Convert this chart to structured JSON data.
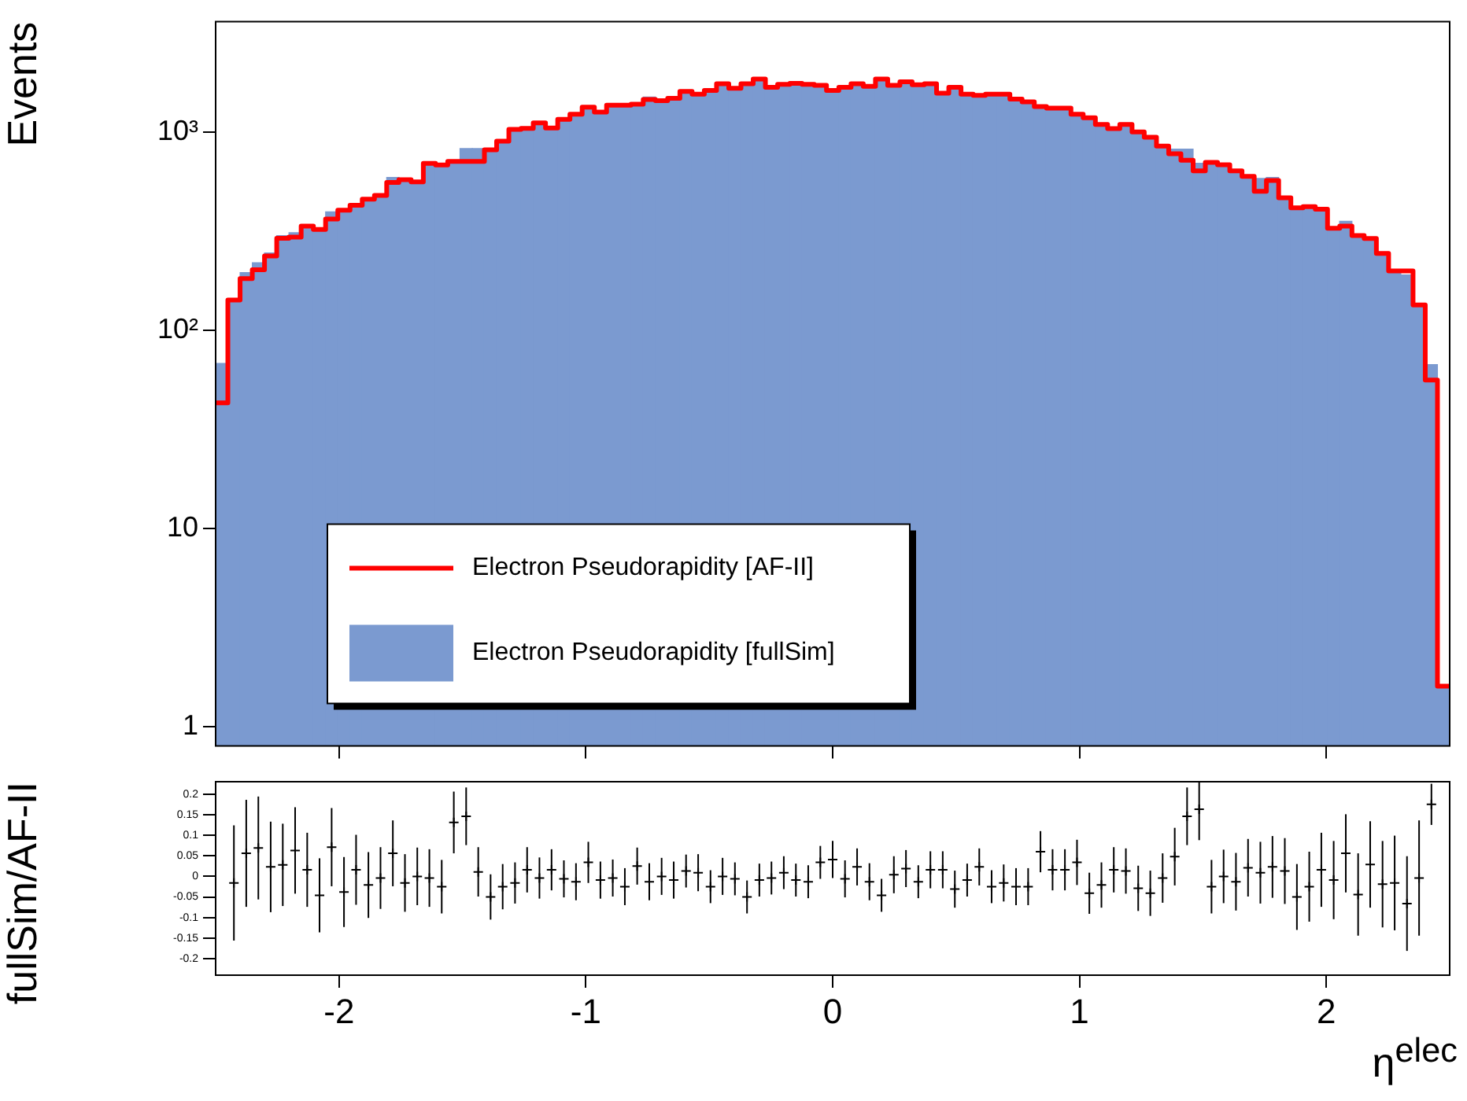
{
  "chart_data": [
    {
      "type": "histogram",
      "ylabel": "Events",
      "log": "y",
      "grid": false,
      "legend": "bottom left",
      "tick_labels": "y",
      "xlim": [
        -2.5,
        2.5
      ],
      "xticks": [
        -2,
        -1,
        0,
        1,
        2
      ],
      "ylim": [
        0.8,
        3600
      ],
      "yticks": [
        1,
        10,
        {
          "value": 100,
          "label": "10²"
        },
        {
          "value": 1000,
          "label": "10³"
        }
      ],
      "bins": [
        -2.5,
        -2.45,
        -2.401,
        -2.351,
        -2.302,
        -2.252,
        -2.203,
        -2.153,
        -2.104,
        -2.054,
        -2.005,
        -1.955,
        -1.906,
        -1.856,
        -1.807,
        -1.757,
        -1.708,
        -1.658,
        -1.609,
        -1.559,
        -1.51,
        -1.46,
        -1.411,
        -1.361,
        -1.312,
        -1.262,
        -1.213,
        -1.163,
        -1.114,
        -1.064,
        -1.015,
        -0.965,
        -0.916,
        -0.866,
        -0.817,
        -0.767,
        -0.718,
        -0.668,
        -0.619,
        -0.569,
        -0.52,
        -0.47,
        -0.421,
        -0.371,
        -0.322,
        -0.272,
        -0.223,
        -0.173,
        -0.124,
        -0.074,
        -0.025,
        0.025,
        0.074,
        0.124,
        0.173,
        0.223,
        0.272,
        0.322,
        0.371,
        0.421,
        0.47,
        0.52,
        0.569,
        0.619,
        0.668,
        0.718,
        0.767,
        0.817,
        0.866,
        0.916,
        0.965,
        1.015,
        1.064,
        1.114,
        1.163,
        1.213,
        1.262,
        1.312,
        1.361,
        1.411,
        1.46,
        1.51,
        1.559,
        1.609,
        1.658,
        1.708,
        1.757,
        1.807,
        1.856,
        1.906,
        1.955,
        2.005,
        2.054,
        2.104,
        2.153,
        2.203,
        2.252,
        2.302,
        2.351,
        2.401,
        2.45,
        2.5
      ],
      "series": [
        {
          "name": "Electron Pseudorapidity [AF-II]",
          "type": "step",
          "color": "#ff0000",
          "x": [
            -2.475,
            -2.426,
            -2.376,
            -2.327,
            -2.277,
            -2.228,
            -2.178,
            -2.129,
            -2.079,
            -2.03,
            -1.98,
            -1.931,
            -1.881,
            -1.832,
            -1.782,
            -1.733,
            -1.683,
            -1.634,
            -1.584,
            -1.535,
            -1.485,
            -1.436,
            -1.386,
            -1.337,
            -1.287,
            -1.238,
            -1.188,
            -1.139,
            -1.089,
            -1.04,
            -0.99,
            -0.941,
            -0.891,
            -0.842,
            -0.792,
            -0.743,
            -0.693,
            -0.644,
            -0.594,
            -0.545,
            -0.495,
            -0.446,
            -0.396,
            -0.347,
            -0.297,
            -0.248,
            -0.198,
            -0.149,
            -0.099,
            -0.05,
            0,
            0.05,
            0.099,
            0.149,
            0.198,
            0.248,
            0.297,
            0.347,
            0.396,
            0.446,
            0.495,
            0.545,
            0.594,
            0.644,
            0.693,
            0.743,
            0.792,
            0.842,
            0.891,
            0.941,
            0.99,
            1.04,
            1.089,
            1.139,
            1.188,
            1.238,
            1.287,
            1.337,
            1.386,
            1.436,
            1.485,
            1.535,
            1.584,
            1.634,
            1.683,
            1.733,
            1.782,
            1.832,
            1.881,
            1.931,
            1.98,
            2.03,
            2.079,
            2.129,
            2.178,
            2.228,
            2.277,
            2.327,
            2.376,
            2.426,
            2.475
          ],
          "values": [
            43,
            142,
            182,
            202,
            237,
            291,
            295,
            335,
            322,
            364,
            403,
            427,
            458,
            479,
            556,
            575,
            560,
            695,
            682,
            711,
            711,
            711,
            813,
            899,
            1030,
            1042,
            1112,
            1047,
            1159,
            1229,
            1335,
            1260,
            1365,
            1365,
            1380,
            1459,
            1440,
            1480,
            1600,
            1550,
            1620,
            1750,
            1660,
            1750,
            1850,
            1680,
            1740,
            1760,
            1740,
            1720,
            1620,
            1680,
            1750,
            1700,
            1850,
            1720,
            1790,
            1730,
            1750,
            1570,
            1680,
            1550,
            1530,
            1550,
            1550,
            1466,
            1420,
            1343,
            1320,
            1320,
            1229,
            1180,
            1092,
            1040,
            1092,
            1000,
            940,
            849,
            776,
            720,
            637,
            703,
            684,
            637,
            597,
            502,
            569,
            466,
            414,
            420,
            408,
            327,
            335,
            300,
            290,
            244,
            199,
            199,
            134,
            56,
            1.6
          ]
        },
        {
          "name": "Electron Pseudorapidity [fullSim]",
          "type": "histogram",
          "color": "#7b9ad0",
          "values": [
            68,
            142,
            195,
            219,
            245,
            300,
            310,
            335,
            322,
            395,
            403,
            427,
            458,
            479,
            589,
            575,
            560,
            695,
            682,
            711,
            824,
            824,
            813,
            899,
            1030,
            1042,
            1112,
            1047,
            1159,
            1229,
            1335,
            1260,
            1365,
            1365,
            1380,
            1500,
            1440,
            1480,
            1600,
            1550,
            1620,
            1750,
            1660,
            1750,
            1850,
            1680,
            1740,
            1760,
            1740,
            1720,
            1620,
            1680,
            1750,
            1700,
            1850,
            1720,
            1790,
            1730,
            1750,
            1570,
            1680,
            1550,
            1530,
            1550,
            1550,
            1466,
            1420,
            1343,
            1320,
            1320,
            1229,
            1180,
            1092,
            1040,
            1092,
            1000,
            940,
            849,
            820,
            820,
            695,
            703,
            684,
            637,
            597,
            583,
            590,
            466,
            414,
            420,
            408,
            327,
            354,
            300,
            290,
            244,
            199,
            190,
            134,
            67,
            1.6
          ]
        }
      ]
    },
    {
      "type": "scatter",
      "xlabel": "η$^{elec}$",
      "ylabel": "fullSim/AF-II",
      "grid": false,
      "marker": "cross",
      "color": "#000000",
      "xlim": [
        -2.5,
        2.5
      ],
      "xticks": [
        -2,
        -1,
        0,
        1,
        2
      ],
      "ylim": [
        -0.24,
        0.23
      ],
      "yticks": [
        -0.2,
        -0.15,
        -0.1,
        -0.05,
        0,
        0.05,
        0.1,
        0.15,
        0.2
      ],
      "x": [
        -2.426,
        -2.376,
        -2.327,
        -2.277,
        -2.228,
        -2.178,
        -2.129,
        -2.079,
        -2.03,
        -1.98,
        -1.931,
        -1.881,
        -1.832,
        -1.782,
        -1.733,
        -1.683,
        -1.634,
        -1.584,
        -1.535,
        -1.485,
        -1.436,
        -1.386,
        -1.337,
        -1.287,
        -1.238,
        -1.188,
        -1.139,
        -1.089,
        -1.04,
        -0.99,
        -0.941,
        -0.891,
        -0.842,
        -0.792,
        -0.743,
        -0.693,
        -0.644,
        -0.594,
        -0.545,
        -0.495,
        -0.446,
        -0.396,
        -0.347,
        -0.297,
        -0.248,
        -0.198,
        -0.149,
        -0.099,
        -0.05,
        0,
        0.05,
        0.099,
        0.149,
        0.198,
        0.248,
        0.297,
        0.347,
        0.396,
        0.446,
        0.495,
        0.545,
        0.594,
        0.644,
        0.693,
        0.743,
        0.792,
        0.842,
        0.891,
        0.941,
        0.99,
        1.04,
        1.089,
        1.139,
        1.188,
        1.238,
        1.287,
        1.337,
        1.386,
        1.436,
        1.485,
        1.535,
        1.584,
        1.634,
        1.683,
        1.733,
        1.782,
        1.832,
        1.881,
        1.931,
        1.98,
        2.03,
        2.079,
        2.129,
        2.178,
        2.228,
        2.277,
        2.327,
        2.376,
        2.426
      ],
      "values": [
        -0.016,
        0.056,
        0.069,
        0.023,
        0.028,
        0.063,
        0.016,
        -0.046,
        0.071,
        -0.038,
        0.016,
        -0.021,
        -0.004,
        0.056,
        -0.016,
        0,
        -0.004,
        -0.025,
        0.131,
        0.146,
        0.011,
        -0.05,
        -0.025,
        -0.016,
        0.016,
        -0.004,
        0.016,
        -0.006,
        -0.013,
        0.034,
        -0.009,
        -0.004,
        -0.025,
        0.025,
        -0.013,
        0,
        -0.009,
        0.013,
        0.009,
        -0.025,
        0,
        -0.006,
        -0.05,
        -0.009,
        -0.004,
        0.009,
        -0.009,
        -0.013,
        0.034,
        0.041,
        -0.006,
        0.023,
        -0.013,
        -0.046,
        0.004,
        0.019,
        -0.013,
        0.016,
        0.016,
        -0.031,
        -0.009,
        0.023,
        -0.025,
        -0.016,
        -0.025,
        -0.025,
        0.06,
        0.016,
        0.016,
        0.034,
        -0.041,
        -0.021,
        0.016,
        0.013,
        -0.029,
        -0.041,
        -0.004,
        0.048,
        0.146,
        0.163,
        -0.025,
        0,
        -0.013,
        0.021,
        0.009,
        0.023,
        0.013,
        -0.05,
        -0.025,
        0.016,
        -0.009,
        0.056,
        -0.044,
        0.029,
        -0.019,
        -0.016,
        -0.066,
        -0.004,
        0.175
      ],
      "errors": [
        0.14,
        0.13,
        0.125,
        0.11,
        0.1,
        0.105,
        0.09,
        0.09,
        0.095,
        0.085,
        0.085,
        0.08,
        0.075,
        0.08,
        0.07,
        0.07,
        0.07,
        0.065,
        0.075,
        0.07,
        0.06,
        0.055,
        0.055,
        0.05,
        0.055,
        0.05,
        0.05,
        0.045,
        0.045,
        0.05,
        0.045,
        0.045,
        0.045,
        0.045,
        0.045,
        0.045,
        0.045,
        0.04,
        0.045,
        0.04,
        0.045,
        0.04,
        0.04,
        0.04,
        0.04,
        0.04,
        0.04,
        0.04,
        0.04,
        0.045,
        0.045,
        0.045,
        0.045,
        0.04,
        0.045,
        0.045,
        0.04,
        0.045,
        0.045,
        0.045,
        0.04,
        0.045,
        0.04,
        0.045,
        0.045,
        0.045,
        0.05,
        0.05,
        0.05,
        0.055,
        0.05,
        0.055,
        0.055,
        0.055,
        0.055,
        0.055,
        0.06,
        0.07,
        0.07,
        0.075,
        0.065,
        0.065,
        0.07,
        0.07,
        0.075,
        0.075,
        0.08,
        0.08,
        0.085,
        0.09,
        0.095,
        0.095,
        0.1,
        0.105,
        0.105,
        0.115,
        0.115,
        0.14,
        0.05
      ]
    }
  ]
}
